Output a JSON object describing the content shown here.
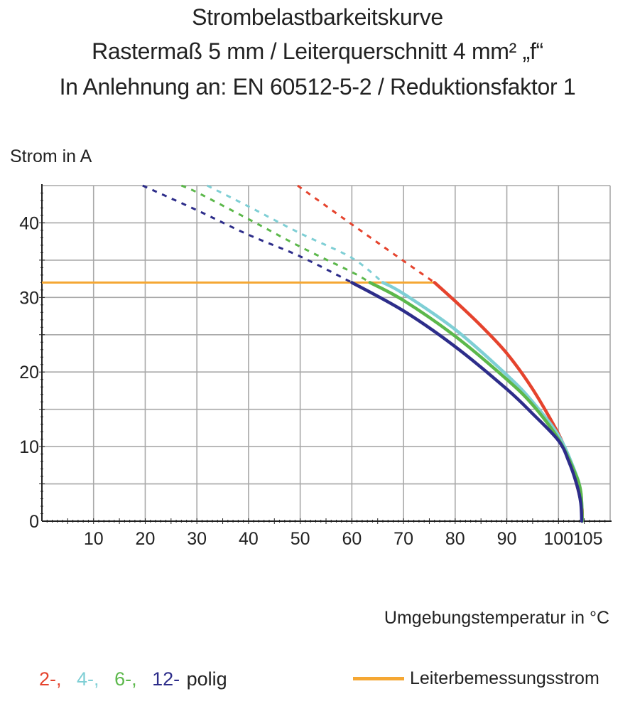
{
  "chart_data": {
    "type": "line",
    "title": "Strombelastbarkeitskurve",
    "subtitle": [
      "Rastermaß 5 mm / Leiterquerschnitt 4 mm² „f“",
      "In Anlehnung an: EN 60512-5-2 / Reduktionsfaktor 1"
    ],
    "xlabel": "Umgebungstemperatur in °C",
    "ylabel": "Strom in A",
    "xlim": [
      0,
      110
    ],
    "ylim": [
      0,
      45
    ],
    "x_ticks": [
      10,
      20,
      30,
      40,
      50,
      60,
      70,
      80,
      90,
      100,
      105
    ],
    "x_grid": [
      10,
      20,
      30,
      40,
      50,
      60,
      70,
      80,
      90,
      100,
      110
    ],
    "y_ticks": [
      0,
      10,
      20,
      30,
      40
    ],
    "y_grid": [
      5,
      10,
      15,
      20,
      25,
      30,
      35,
      40,
      45
    ],
    "grid": true,
    "series": [
      {
        "name": "2-,",
        "color": "#e5432d",
        "solid": [
          [
            76,
            32
          ],
          [
            80,
            29.5
          ],
          [
            85,
            26.2
          ],
          [
            90,
            22.5
          ],
          [
            95,
            17.7
          ],
          [
            100,
            11.7
          ],
          [
            102,
            8.3
          ],
          [
            103.5,
            5
          ],
          [
            104.5,
            2
          ],
          [
            104.6,
            0
          ]
        ],
        "dashed": [
          [
            49.5,
            45
          ],
          [
            60,
            39.8
          ],
          [
            70,
            34.9
          ],
          [
            76,
            32
          ]
        ]
      },
      {
        "name": "4-,",
        "color": "#7fcfd5",
        "solid": [
          [
            66,
            32
          ],
          [
            70,
            30.5
          ],
          [
            80,
            25.7
          ],
          [
            90,
            19.6
          ],
          [
            95,
            16
          ],
          [
            100,
            11.5
          ],
          [
            103,
            7
          ],
          [
            104.3,
            4
          ],
          [
            104.6,
            0
          ]
        ],
        "dashed": [
          [
            32,
            45
          ],
          [
            40,
            42.2
          ],
          [
            50,
            38.6
          ],
          [
            60,
            35.3
          ],
          [
            66,
            32
          ]
        ]
      },
      {
        "name": "6-,",
        "color": "#5cb84b",
        "solid": [
          [
            63.5,
            32
          ],
          [
            70,
            29.6
          ],
          [
            80,
            24.8
          ],
          [
            90,
            19
          ],
          [
            95,
            15.6
          ],
          [
            100,
            11
          ],
          [
            103,
            6.8
          ],
          [
            104.3,
            4
          ],
          [
            104.6,
            0
          ]
        ],
        "dashed": [
          [
            27,
            45
          ],
          [
            30,
            44.1
          ],
          [
            40,
            40.5
          ],
          [
            50,
            36.8
          ],
          [
            60,
            33.4
          ],
          [
            63.5,
            32
          ]
        ]
      },
      {
        "name": "12-",
        "color": "#2d2d8a",
        "solid": [
          [
            60,
            32
          ],
          [
            70,
            28.2
          ],
          [
            80,
            23.4
          ],
          [
            90,
            17.7
          ],
          [
            95,
            14.4
          ],
          [
            100,
            10.8
          ],
          [
            102,
            8
          ],
          [
            103.5,
            5
          ],
          [
            104.3,
            2.5
          ],
          [
            104.5,
            0
          ]
        ],
        "dashed": [
          [
            19.5,
            45
          ],
          [
            30,
            41.7
          ],
          [
            40,
            38.4
          ],
          [
            50,
            35.5
          ],
          [
            60,
            32
          ]
        ]
      }
    ],
    "rated_current": {
      "name": "Leiterbemessungsstrom",
      "value": 32,
      "color": "#f5a733",
      "x_range": [
        0,
        76
      ]
    },
    "legend": {
      "suffix": "polig",
      "placement": "bottom"
    }
  }
}
